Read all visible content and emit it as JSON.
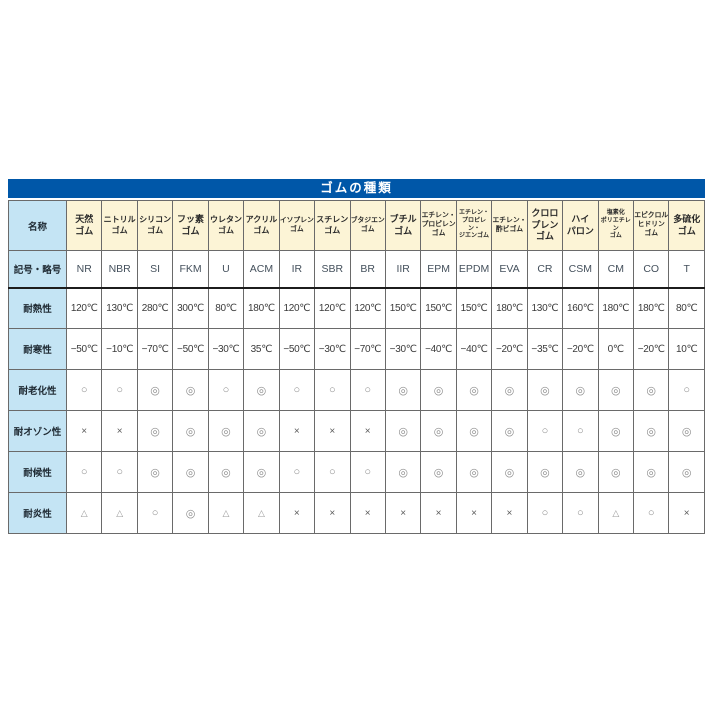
{
  "title_bar": "ゴムの種類",
  "colors": {
    "title_bar": "#0057A8",
    "row_header_bg": "#C4E4F4",
    "col_header_bg": "#FCF4D6",
    "border": "#6A6A6A"
  },
  "symbols_legend": {
    "excellent": "◎",
    "good": "○",
    "fair": "△",
    "poor": "×"
  },
  "chart_data": {
    "type": "table",
    "title": "ゴムの種類",
    "corner_label": "名称",
    "row_headers": [
      {
        "key": "abbr",
        "label": "記号・略号"
      },
      {
        "key": "heat",
        "label": "耐熱性"
      },
      {
        "key": "cold",
        "label": "耐寒性"
      },
      {
        "key": "aging",
        "label": "耐老化性"
      },
      {
        "key": "ozone",
        "label": "耐オゾン性"
      },
      {
        "key": "weather",
        "label": "耐候性"
      },
      {
        "key": "flame",
        "label": "耐炎性"
      }
    ],
    "columns": [
      {
        "name_lines": [
          "天然",
          "ゴム"
        ],
        "abbr": "NR",
        "heat": "120℃",
        "cold": "−50℃",
        "aging": "○",
        "ozone": "×",
        "weather": "○",
        "flame": "△"
      },
      {
        "name_lines": [
          "ニトリル",
          "ゴム"
        ],
        "abbr": "NBR",
        "heat": "130℃",
        "cold": "−10℃",
        "aging": "○",
        "ozone": "×",
        "weather": "○",
        "flame": "△"
      },
      {
        "name_lines": [
          "シリコン",
          "ゴム"
        ],
        "abbr": "SI",
        "heat": "280℃",
        "cold": "−70℃",
        "aging": "◎",
        "ozone": "◎",
        "weather": "◎",
        "flame": "○"
      },
      {
        "name_lines": [
          "フッ素",
          "ゴム"
        ],
        "abbr": "FKM",
        "heat": "300℃",
        "cold": "−50℃",
        "aging": "◎",
        "ozone": "◎",
        "weather": "◎",
        "flame": "◎"
      },
      {
        "name_lines": [
          "ウレタン",
          "ゴム"
        ],
        "abbr": "U",
        "heat": "80℃",
        "cold": "−30℃",
        "aging": "○",
        "ozone": "◎",
        "weather": "◎",
        "flame": "△"
      },
      {
        "name_lines": [
          "アクリル",
          "ゴム"
        ],
        "abbr": "ACM",
        "heat": "180℃",
        "cold": "35℃",
        "aging": "◎",
        "ozone": "◎",
        "weather": "◎",
        "flame": "△"
      },
      {
        "name_lines": [
          "イソプレン",
          "ゴム"
        ],
        "abbr": "IR",
        "heat": "120℃",
        "cold": "−50℃",
        "aging": "○",
        "ozone": "×",
        "weather": "○",
        "flame": "×"
      },
      {
        "name_lines": [
          "スチレン",
          "ゴム"
        ],
        "abbr": "SBR",
        "heat": "120℃",
        "cold": "−30℃",
        "aging": "○",
        "ozone": "×",
        "weather": "○",
        "flame": "×"
      },
      {
        "name_lines": [
          "ブタジエン",
          "ゴム"
        ],
        "abbr": "BR",
        "heat": "120℃",
        "cold": "−70℃",
        "aging": "○",
        "ozone": "×",
        "weather": "○",
        "flame": "×"
      },
      {
        "name_lines": [
          "ブチル",
          "ゴム"
        ],
        "abbr": "IIR",
        "heat": "150℃",
        "cold": "−30℃",
        "aging": "◎",
        "ozone": "◎",
        "weather": "◎",
        "flame": "×"
      },
      {
        "name_lines": [
          "エチレン・",
          "プロピレン",
          "ゴム"
        ],
        "abbr": "EPM",
        "heat": "150℃",
        "cold": "−40℃",
        "aging": "◎",
        "ozone": "◎",
        "weather": "◎",
        "flame": "×"
      },
      {
        "name_lines": [
          "エチレン・",
          "プロピレン・",
          "ジエンゴム"
        ],
        "abbr": "EPDM",
        "heat": "150℃",
        "cold": "−40℃",
        "aging": "◎",
        "ozone": "◎",
        "weather": "◎",
        "flame": "×"
      },
      {
        "name_lines": [
          "エチレン・",
          "酢ビゴム"
        ],
        "abbr": "EVA",
        "heat": "180℃",
        "cold": "−20℃",
        "aging": "◎",
        "ozone": "◎",
        "weather": "◎",
        "flame": "×"
      },
      {
        "name_lines": [
          "クロロ",
          "プレン",
          "ゴム"
        ],
        "abbr": "CR",
        "heat": "130℃",
        "cold": "−35℃",
        "aging": "◎",
        "ozone": "○",
        "weather": "◎",
        "flame": "○"
      },
      {
        "name_lines": [
          "ハイ",
          "パロン"
        ],
        "abbr": "CSM",
        "heat": "160℃",
        "cold": "−20℃",
        "aging": "◎",
        "ozone": "○",
        "weather": "◎",
        "flame": "○"
      },
      {
        "name_lines": [
          "塩素化",
          "ポリエチレン",
          "ゴム"
        ],
        "abbr": "CM",
        "heat": "180℃",
        "cold": "0℃",
        "aging": "◎",
        "ozone": "◎",
        "weather": "◎",
        "flame": "△"
      },
      {
        "name_lines": [
          "エピクロル",
          "ヒドリン",
          "ゴム"
        ],
        "abbr": "CO",
        "heat": "180℃",
        "cold": "−20℃",
        "aging": "◎",
        "ozone": "◎",
        "weather": "◎",
        "flame": "○"
      },
      {
        "name_lines": [
          "多硫化",
          "ゴム"
        ],
        "abbr": "T",
        "heat": "80℃",
        "cold": "10℃",
        "aging": "○",
        "ozone": "◎",
        "weather": "◎",
        "flame": "×"
      }
    ]
  }
}
